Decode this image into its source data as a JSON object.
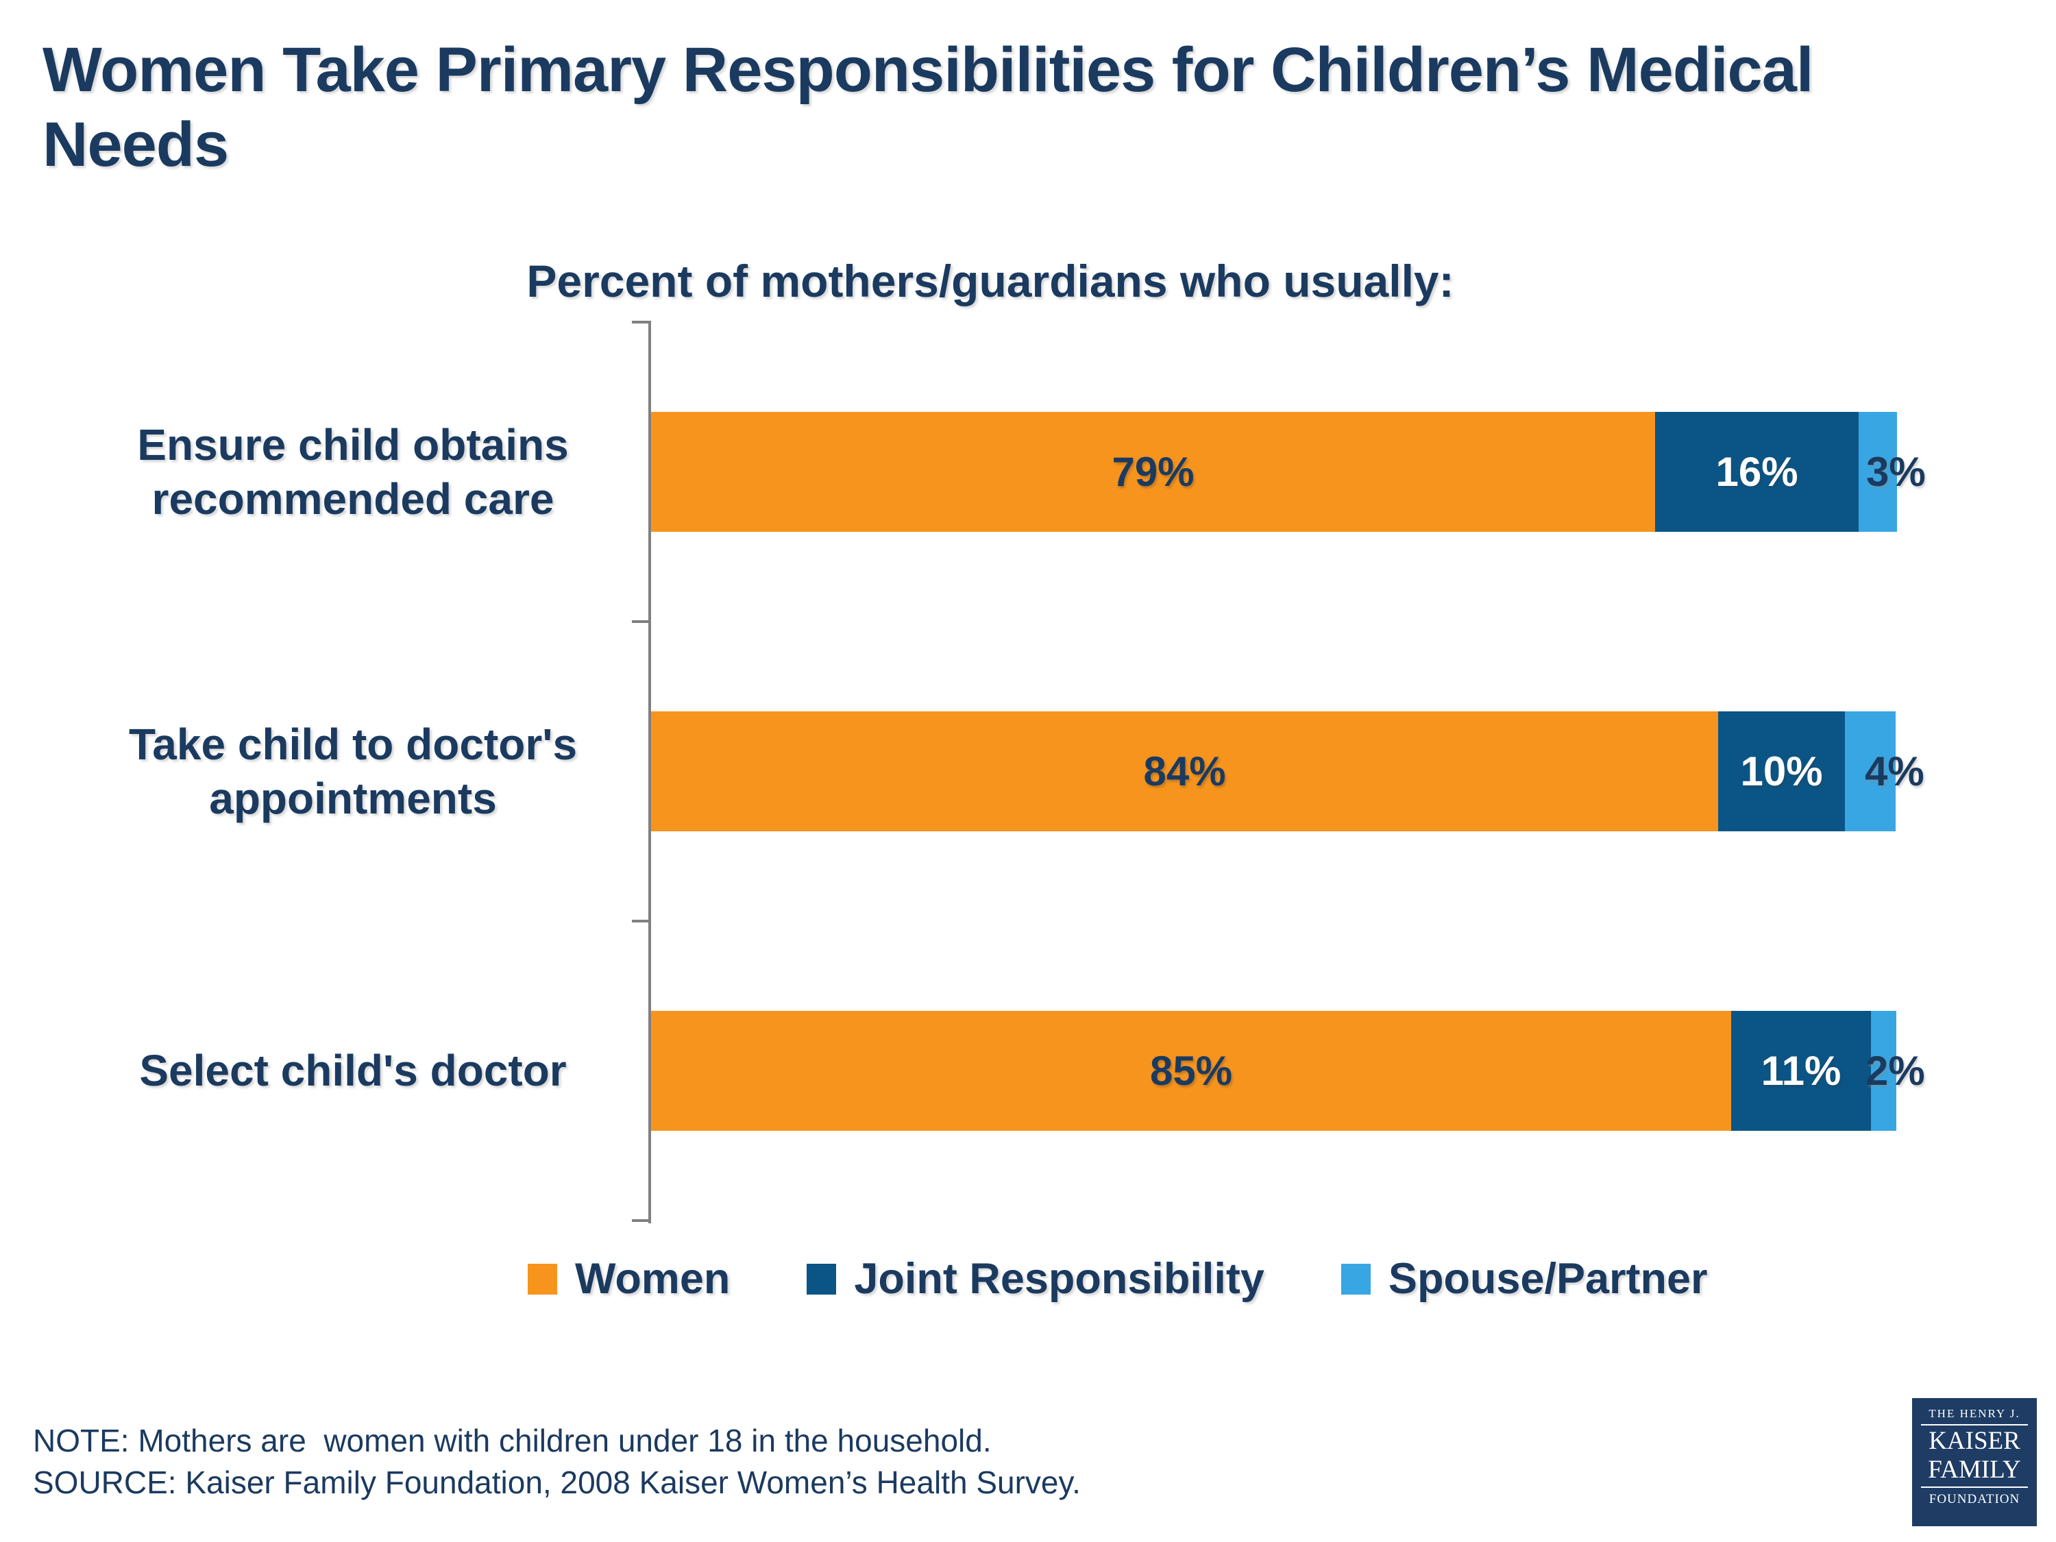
{
  "chart_data": {
    "type": "bar",
    "orientation": "horizontal",
    "stacked": true,
    "title": "Women Take Primary Responsibilities for Children’s Medical\nNeeds",
    "subtitle": "Percent of mothers/guardians who usually:",
    "categories": [
      "Ensure child obtains\nrecommended care",
      "Take child to doctor's\nappointments",
      "Select child's doctor"
    ],
    "series": [
      {
        "name": "Women",
        "color": "#F7941D",
        "values": [
          79,
          84,
          85
        ],
        "label_color": "#1B3A5F",
        "labels_outside": false
      },
      {
        "name": "Joint Responsibility",
        "color": "#0A5586",
        "values": [
          16,
          10,
          11
        ],
        "label_color": "#FFFFFF",
        "labels_outside": false
      },
      {
        "name": "Spouse/Partner",
        "color": "#38A6E3",
        "values": [
          3,
          4,
          2
        ],
        "label_color": "#1B3A5F",
        "labels_outside": true
      }
    ],
    "value_suffix": "%",
    "xlim": [
      0,
      100
    ],
    "grid": false,
    "axis_color": "#808080",
    "legend_position": "bottom",
    "note": "NOTE: Mothers are  women with children under 18 in the household.",
    "source": "SOURCE: Kaiser Family Foundation, 2008 Kaiser Women’s Health Survey."
  },
  "colors": {
    "brand_navy_text": "#1B3A5F",
    "logo_background": "#1E3C64"
  },
  "logo": {
    "line1": "THE HENRY J.",
    "line2": "KAISER",
    "line3": "FAMILY",
    "line4": "FOUNDATION"
  }
}
